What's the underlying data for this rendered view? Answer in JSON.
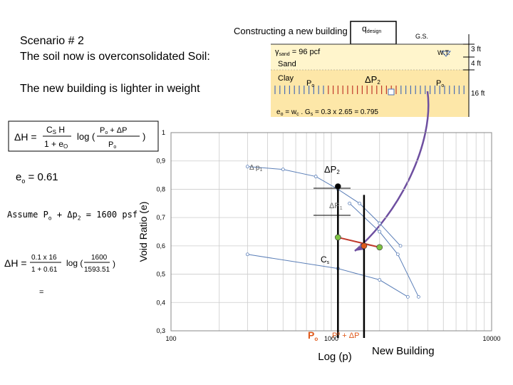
{
  "scenario": {
    "line1": "Scenario # 2",
    "line2": "The soil now is overconsolidated Soil:"
  },
  "subtitle": "The new building is lighter in weight",
  "soil_profile": {
    "title": "Constructing a new building",
    "q_design": "q",
    "q_design_sub": "design",
    "gs": "G.S.",
    "gamma_sand": "γ",
    "gamma_sub": "sand",
    "gamma_value": " = 96 pcf",
    "wt": "W.T.",
    "sand": "Sand",
    "clay": "Clay",
    "depth_3": "3 ft",
    "depth_4": "4 ft",
    "depth_16": "16 ft",
    "po": "P",
    "po_sub": "o",
    "dp2": "ΔP",
    "dp2_sub": "2",
    "eo_formula": "e",
    "eo_formula_sub": "o",
    "eo_formula_rest": " = w",
    "eo_wc_sub": "c",
    "eo_formula_rest2": " . G",
    "eo_gs_sub": "s",
    "eo_formula_rest3": " = 0.3 x 2.65 = 0.795"
  },
  "formula": {
    "dH": "ΔH =",
    "cs_h": "C",
    "cs_sub": "S",
    "cs_h2": " H",
    "denom": "1 + e",
    "denom_sub": "O",
    "log": "log (",
    "num_p": "P",
    "num_p_sub": "o",
    "num_rest": " + ΔP",
    "den_p": "P",
    "den_p_sub": "o",
    "close": ")"
  },
  "eo_value": {
    "label": "e",
    "sub": "o",
    "value": " =  0.61"
  },
  "assume": {
    "text": "Assume  P",
    "sub": "o",
    "rest": " + Δp",
    "sub2": "2",
    "rest2": " = 1600 psf"
  },
  "calc": {
    "dH": "ΔH =",
    "num": "0.1 x 16",
    "den": "1 + 0.61",
    "log": "log (",
    "num2": "1600",
    "den2": "1593.51",
    "close": ")",
    "equals": "="
  },
  "chart_labels": {
    "ylabel": "Void Ratio (e)",
    "xlabel": "Log (p)",
    "new_building": "New Building",
    "dp1": "Δ p",
    "dp1_sub": "1",
    "dp2": "ΔP",
    "dp2_sub": "2",
    "dp1b": "ΔP",
    "dp1b_sub": "1",
    "cs": "C",
    "cs_sub": "s",
    "po_bottom": "P",
    "po_bottom_sub": "o",
    "po_plus": "P",
    "po_plus_sub": "o",
    "po_plus_rest": " + ΔP"
  },
  "chart_data": {
    "type": "line",
    "x_scale": "log",
    "xlim": [
      100,
      10000
    ],
    "ylim": [
      0.3,
      1.0
    ],
    "y_ticks": [
      "1",
      "0,9",
      "0,8",
      "0,7",
      "0,6",
      "0,5",
      "0,4",
      "0,3"
    ],
    "x_ticks": [
      "100",
      "1000",
      "10000"
    ],
    "grid": true,
    "series": [
      {
        "x": [
          300,
          500,
          800,
          1100,
          1500,
          2000,
          2700
        ],
        "y": [
          0.88,
          0.87,
          0.845,
          0.8,
          0.75,
          0.68,
          0.6
        ]
      },
      {
        "x": [
          1300,
          2000,
          2600,
          3500
        ],
        "y": [
          0.75,
          0.65,
          0.57,
          0.42
        ]
      },
      {
        "x": [
          300,
          1100,
          2000,
          3000
        ],
        "y": [
          0.57,
          0.52,
          0.48,
          0.42
        ]
      }
    ],
    "markers": [
      {
        "x": 1100,
        "y": 0.81,
        "color": "#000000"
      },
      {
        "x": 1100,
        "y": 0.63,
        "color": "#7dc142"
      },
      {
        "x": 1600,
        "y": 0.6,
        "color": "#e05a1c"
      },
      {
        "x": 2000,
        "y": 0.595,
        "color": "#7dc142"
      }
    ]
  }
}
